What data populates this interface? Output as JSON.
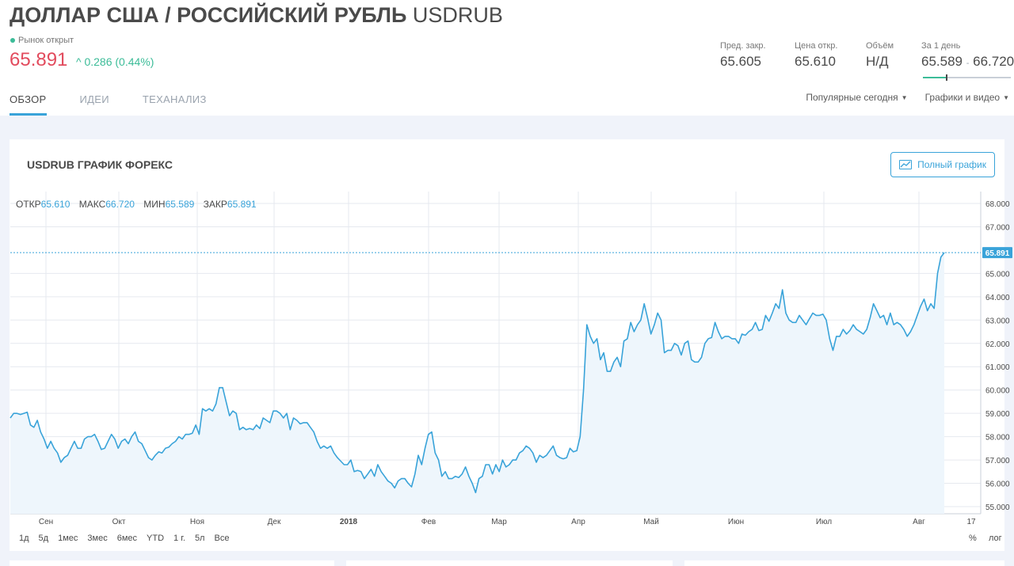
{
  "header": {
    "title_main": "ДОЛЛАР США / РОССИЙСКИЙ РУБЛЬ",
    "title_ticker": "USDRUB",
    "market_status": "Рынок открыт",
    "price": "65.891",
    "change": "0.286 (0.44%)",
    "change_arrow": "^"
  },
  "stats": [
    {
      "label": "Пред. закр.",
      "value": "65.605"
    },
    {
      "label": "Цена откр.",
      "value": "65.610"
    },
    {
      "label": "Объём",
      "value": "Н/Д"
    },
    {
      "label": "За 1 день",
      "value_low": "65.589",
      "sep": "-",
      "value_high": "66.720"
    }
  ],
  "day_range_position": 0.27,
  "tabs": [
    {
      "label": "ОБЗОР",
      "active": true
    },
    {
      "label": "ИДЕИ",
      "active": false
    },
    {
      "label": "ТЕХАНАЛИЗ",
      "active": false
    }
  ],
  "menus": [
    {
      "label": "Популярные сегодня"
    },
    {
      "label": "Графики и видео"
    }
  ],
  "card": {
    "title": "USDRUB ГРАФИК ФОРЕКС",
    "full_chart_label": "Полный график"
  },
  "ohlc": {
    "open_label": "ОТКР",
    "open": "65.610",
    "high_label": "МАКС",
    "high": "66.720",
    "low_label": "МИН",
    "low": "65.589",
    "close_label": "ЗАКР",
    "close": "65.891"
  },
  "range_buttons": [
    "1д",
    "5д",
    "1мес",
    "3мес",
    "6мес",
    "YTD",
    "1 г.",
    "5л",
    "Все"
  ],
  "scale_buttons": {
    "percent": "%",
    "log": "лог"
  },
  "colors": {
    "line": "#39a3d9",
    "fill": "#eef6fc",
    "price_down": "#e24b5d",
    "up": "#3cbc98",
    "grid": "#e6e9ef"
  },
  "chart_data": {
    "type": "area",
    "x_ticks": [
      "Сен",
      "Окт",
      "Ноя",
      "Дек",
      "2018",
      "Фев",
      "Мар",
      "Апр",
      "Май",
      "Июн",
      "Июл",
      "Авг",
      "17"
    ],
    "y_ticks": [
      "55.000",
      "56.000",
      "57.000",
      "58.000",
      "59.000",
      "60.000",
      "61.000",
      "62.000",
      "63.000",
      "64.000",
      "65.000",
      "67.000",
      "68.000"
    ],
    "ylim": [
      54.8,
      68.4
    ],
    "last_value": 65.891,
    "last_value_label": "65.891",
    "values": [
      58.8,
      59.0,
      59.0,
      58.95,
      59.0,
      59.05,
      58.5,
      58.4,
      58.7,
      58.2,
      57.9,
      57.5,
      57.8,
      57.5,
      57.3,
      56.9,
      57.1,
      57.2,
      57.5,
      57.8,
      57.5,
      57.5,
      57.9,
      58.0,
      58.0,
      58.1,
      57.8,
      57.45,
      57.5,
      57.8,
      58.1,
      57.9,
      57.5,
      57.8,
      57.9,
      57.7,
      58.0,
      58.2,
      57.8,
      57.7,
      57.4,
      57.1,
      57.0,
      57.2,
      57.35,
      57.3,
      57.5,
      57.55,
      57.7,
      57.8,
      58.0,
      57.9,
      58.1,
      58.1,
      58.15,
      58.5,
      58.1,
      59.2,
      59.1,
      59.2,
      59.1,
      59.4,
      60.1,
      60.1,
      59.5,
      58.9,
      59.1,
      59.0,
      58.3,
      58.4,
      58.3,
      58.35,
      58.3,
      58.5,
      58.35,
      58.8,
      58.7,
      58.6,
      59.1,
      59.1,
      59.0,
      58.8,
      59.0,
      58.3,
      58.8,
      58.7,
      58.55,
      58.6,
      58.6,
      58.4,
      58.2,
      57.8,
      57.5,
      57.6,
      57.5,
      57.6,
      57.3,
      57.1,
      56.95,
      56.8,
      56.8,
      57.0,
      56.5,
      56.55,
      56.5,
      56.2,
      56.4,
      56.6,
      56.3,
      56.8,
      56.5,
      56.3,
      56.1,
      56.0,
      55.8,
      56.1,
      56.2,
      56.2,
      56.0,
      55.85,
      56.4,
      57.2,
      56.8,
      57.5,
      58.1,
      58.2,
      57.3,
      57.0,
      56.3,
      56.5,
      56.2,
      56.2,
      56.3,
      56.25,
      56.4,
      56.7,
      56.3,
      56.0,
      55.6,
      56.2,
      56.3,
      56.8,
      56.8,
      56.4,
      56.8,
      56.5,
      57.0,
      56.7,
      56.8,
      57.0,
      57.0,
      57.3,
      57.4,
      57.6,
      57.5,
      57.3,
      56.9,
      57.2,
      57.1,
      57.2,
      57.4,
      57.6,
      57.2,
      57.1,
      57.05,
      57.1,
      57.5,
      57.35,
      57.4,
      58.0,
      60.0,
      62.8,
      62.3,
      62.0,
      62.2,
      61.3,
      61.6,
      60.8,
      60.8,
      61.2,
      61.4,
      61.0,
      62.1,
      62.2,
      62.9,
      62.5,
      62.8,
      63.0,
      63.7,
      63.1,
      62.4,
      62.8,
      63.3,
      63.0,
      61.6,
      61.7,
      61.7,
      62.0,
      61.9,
      61.5,
      62.0,
      62.1,
      61.3,
      61.2,
      61.2,
      61.4,
      62.0,
      62.2,
      62.25,
      62.9,
      62.5,
      62.2,
      62.3,
      62.3,
      62.2,
      62.2,
      62.0,
      62.4,
      62.35,
      62.5,
      62.6,
      62.9,
      62.55,
      62.6,
      63.2,
      62.95,
      63.3,
      63.7,
      63.5,
      64.3,
      63.3,
      63.0,
      62.9,
      62.9,
      63.2,
      63.0,
      62.8,
      63.05,
      63.3,
      63.2,
      63.2,
      63.25,
      63.0,
      62.2,
      61.7,
      62.3,
      62.3,
      62.6,
      62.4,
      62.55,
      62.8,
      62.6,
      62.5,
      62.4,
      62.6,
      63.1,
      63.7,
      63.4,
      63.1,
      63.2,
      62.8,
      63.3,
      62.8,
      62.9,
      62.8,
      62.6,
      62.3,
      62.5,
      62.8,
      63.2,
      63.6,
      63.9,
      63.4,
      63.7,
      63.5,
      65.0,
      65.7,
      65.891
    ]
  }
}
